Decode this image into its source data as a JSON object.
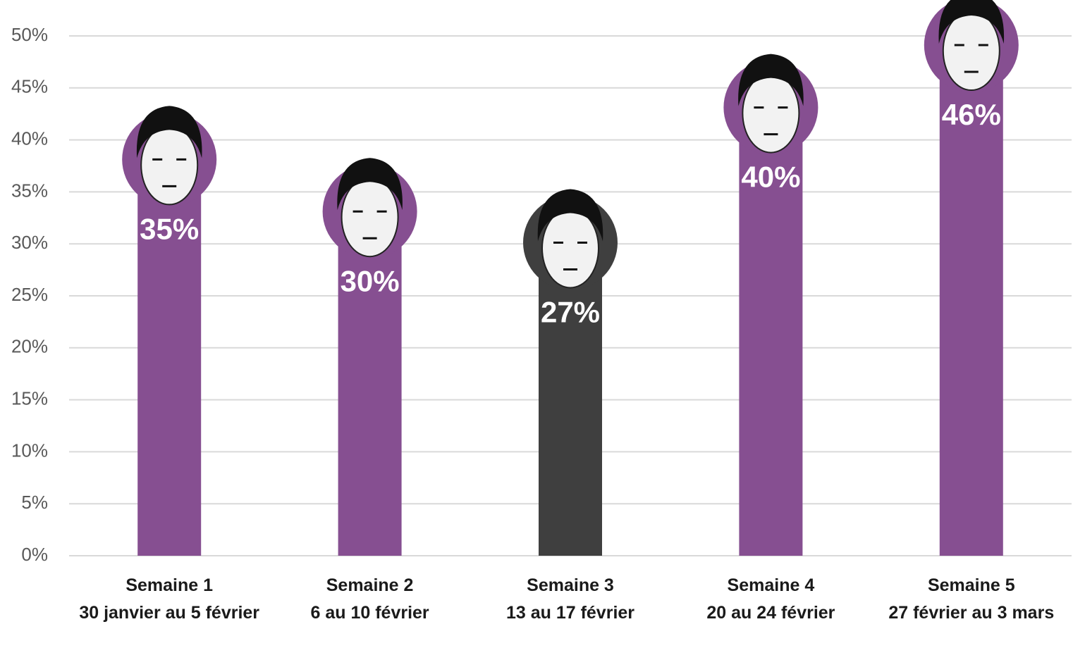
{
  "chart_data": {
    "type": "bar",
    "categories": [
      [
        "Semaine 1",
        "30 janvier au 5 février"
      ],
      [
        "Semaine 2",
        "6 au 10 février"
      ],
      [
        "Semaine 3",
        "13 au 17 février"
      ],
      [
        "Semaine 4",
        "20 au 24 février"
      ],
      [
        "Semaine 5",
        "27 février au 3 mars"
      ]
    ],
    "values": [
      35,
      30,
      27,
      40,
      46
    ],
    "value_labels": [
      "35%",
      "30%",
      "27%",
      "40%",
      "46%"
    ],
    "colors": [
      "#864f91",
      "#864f91",
      "#3f3f3f",
      "#864f91",
      "#864f91"
    ],
    "ylim": [
      0,
      50
    ],
    "yticks": [
      {
        "value": 0,
        "label": "0%"
      },
      {
        "value": 5,
        "label": "5%"
      },
      {
        "value": 10,
        "label": "10%"
      },
      {
        "value": 15,
        "label": "15%"
      },
      {
        "value": 20,
        "label": "20%"
      },
      {
        "value": 25,
        "label": "25%"
      },
      {
        "value": 30,
        "label": "30%"
      },
      {
        "value": 35,
        "label": "35%"
      },
      {
        "value": 40,
        "label": "40%"
      },
      {
        "value": 45,
        "label": "45%"
      },
      {
        "value": 50,
        "label": "50%"
      }
    ],
    "grid": true
  }
}
